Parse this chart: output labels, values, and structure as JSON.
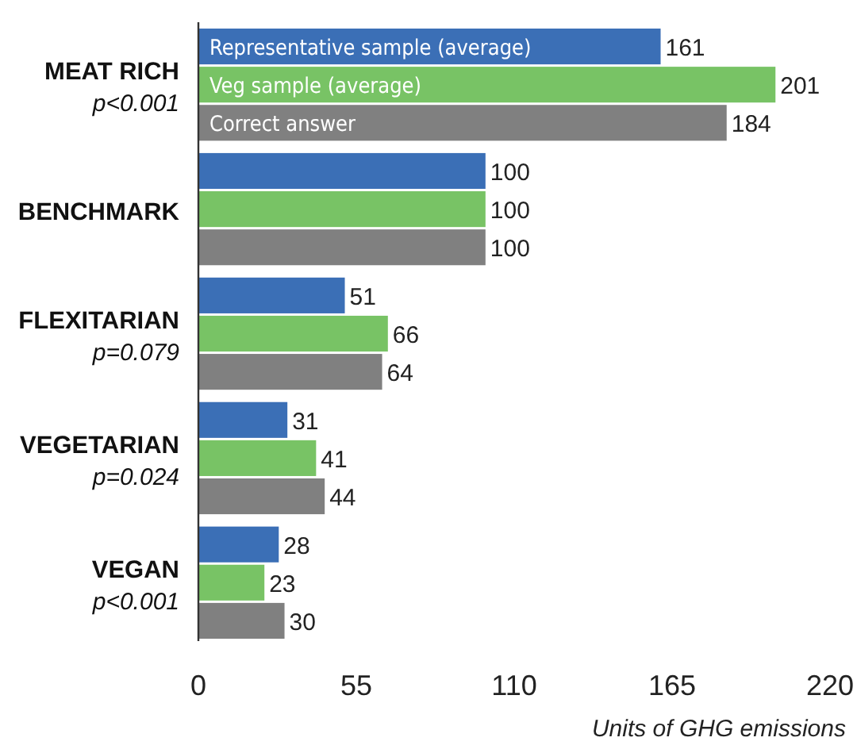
{
  "chart_data": {
    "type": "bar",
    "orientation": "horizontal",
    "categories": [
      "MEAT RICH\np<0.001",
      "BENCHMARK",
      "FLEXITARIAN\np=0.079",
      "VEGETARIAN\np=0.024",
      "VEGAN\np<0.001"
    ],
    "series": [
      {
        "name": "Representative sample (average)",
        "color": "#3b6fb6",
        "values": [
          161,
          100,
          51,
          31,
          28
        ]
      },
      {
        "name": "Veg sample (average)",
        "color": "#78c365",
        "values": [
          201,
          100,
          66,
          41,
          23
        ]
      },
      {
        "name": "Correct answer",
        "color": "#808080",
        "values": [
          184,
          100,
          64,
          44,
          30
        ]
      }
    ],
    "xlim": [
      0,
      220
    ],
    "xticks": [
      0,
      55,
      110,
      165,
      220
    ],
    "xlabel": "Units of GHG emissions",
    "data_labels": true
  }
}
